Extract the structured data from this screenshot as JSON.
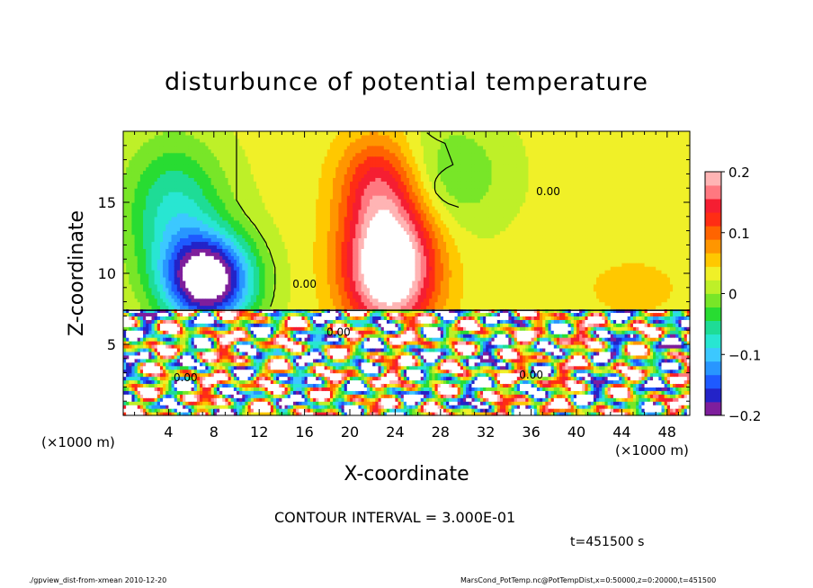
{
  "chart_data": {
    "type": "heatmap",
    "title": "disturbunce of potential temperature",
    "xlabel": "X-coordinate",
    "ylabel": "Z-coordinate",
    "x_unit": "(×1000 m)",
    "y_unit": "(×1000 m)",
    "xlim": [
      0,
      50
    ],
    "ylim": [
      0,
      20
    ],
    "x_ticks": [
      4,
      8,
      12,
      16,
      20,
      24,
      28,
      32,
      36,
      40,
      44,
      48
    ],
    "y_ticks": [
      5,
      10,
      15
    ],
    "colorbar": {
      "min": -0.2,
      "max": 0.2,
      "tick_values": [
        -0.2,
        -0.1,
        0,
        0.1,
        0.2
      ],
      "tick_labels": [
        "−0.2",
        "−0.1",
        "0",
        "0.1",
        "0.2"
      ],
      "colors": [
        "#7e1e9c",
        "#2323c8",
        "#1e5aff",
        "#2896ff",
        "#3cc8ff",
        "#28e6d2",
        "#1edc96",
        "#28dc32",
        "#78e628",
        "#bef028",
        "#f0f028",
        "#ffc800",
        "#ff9600",
        "#ff6400",
        "#ff2d14",
        "#f51e32",
        "#ff7880",
        "#ffb4b4"
      ]
    },
    "field_features": [
      {
        "kind": "cold",
        "x": 7.5,
        "z": 9.5,
        "value": -0.21
      },
      {
        "kind": "cold",
        "x": 4.5,
        "z": 14.5,
        "value": -0.1
      },
      {
        "kind": "warm",
        "x": 23.5,
        "z": 10.5,
        "value": 0.21
      },
      {
        "kind": "warm",
        "x": 22.5,
        "z": 15.5,
        "value": 0.12
      },
      {
        "kind": "warm",
        "x": 34.5,
        "z": 9.5,
        "value": 0.04
      },
      {
        "kind": "warm",
        "x": 44,
        "z": 9,
        "value": 0.04
      }
    ],
    "boundary_z": 7.4,
    "contour_labels": [
      {
        "text": "0.00",
        "x": 16,
        "z": 9.0
      },
      {
        "text": "0.00",
        "x": 19,
        "z": 5.6
      },
      {
        "text": "0.00",
        "x": 37.5,
        "z": 15.5
      },
      {
        "text": "0.00",
        "x": 5.5,
        "z": 2.4
      },
      {
        "text": "0.00",
        "x": 36,
        "z": 2.6
      }
    ]
  },
  "texts": {
    "title": "disturbunce of potential temperature",
    "contour_interval": "CONTOUR INTERVAL = 3.000E-01",
    "time": "t=451500 s",
    "footer_left": "./gpview_dist-from-xmean  2010-12-20",
    "footer_right": "MarsCond_PotTemp.nc@PotTempDist,x=0:50000,z=0:20000,t=451500"
  }
}
